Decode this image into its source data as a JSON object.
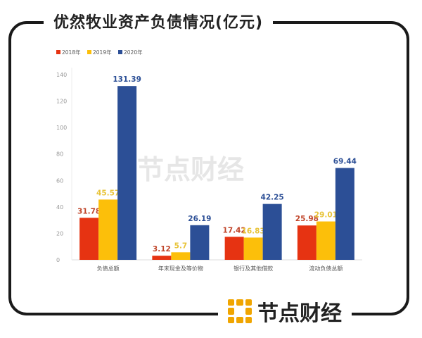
{
  "title": "优然牧业资产负债情况(亿元)",
  "brand": "节点财经",
  "chart_data": {
    "type": "bar",
    "title": "优然牧业资产负债情况(亿元)",
    "categories": [
      "负债总额",
      "年末现金及等价物",
      "银行及其他借款",
      "流动负债总额"
    ],
    "series": [
      {
        "name": "2018年",
        "color": "#e63312",
        "values": [
          31.78,
          3.12,
          17.42,
          25.98
        ]
      },
      {
        "name": "2019年",
        "color": "#fcbf0a",
        "values": [
          45.57,
          5.7,
          16.83,
          29.01
        ]
      },
      {
        "name": "2020年",
        "color": "#2c4f96",
        "values": [
          131.39,
          26.19,
          42.25,
          69.44
        ]
      }
    ],
    "value_labels": [
      [
        "31.78",
        "3.12",
        "17.42",
        "25.98"
      ],
      [
        "45.57",
        "5.7",
        "16.83",
        "29.01"
      ],
      [
        "131.39",
        "26.19",
        "42.25",
        "69.44"
      ]
    ],
    "label_colors": [
      "#c0452a",
      "#e8c43a",
      "#2c4f96"
    ],
    "yticks": [
      "0",
      "20",
      "40",
      "60",
      "80",
      "100",
      "120",
      "140"
    ],
    "ylim": [
      0,
      140
    ],
    "legend": "top-left",
    "grid": false
  }
}
